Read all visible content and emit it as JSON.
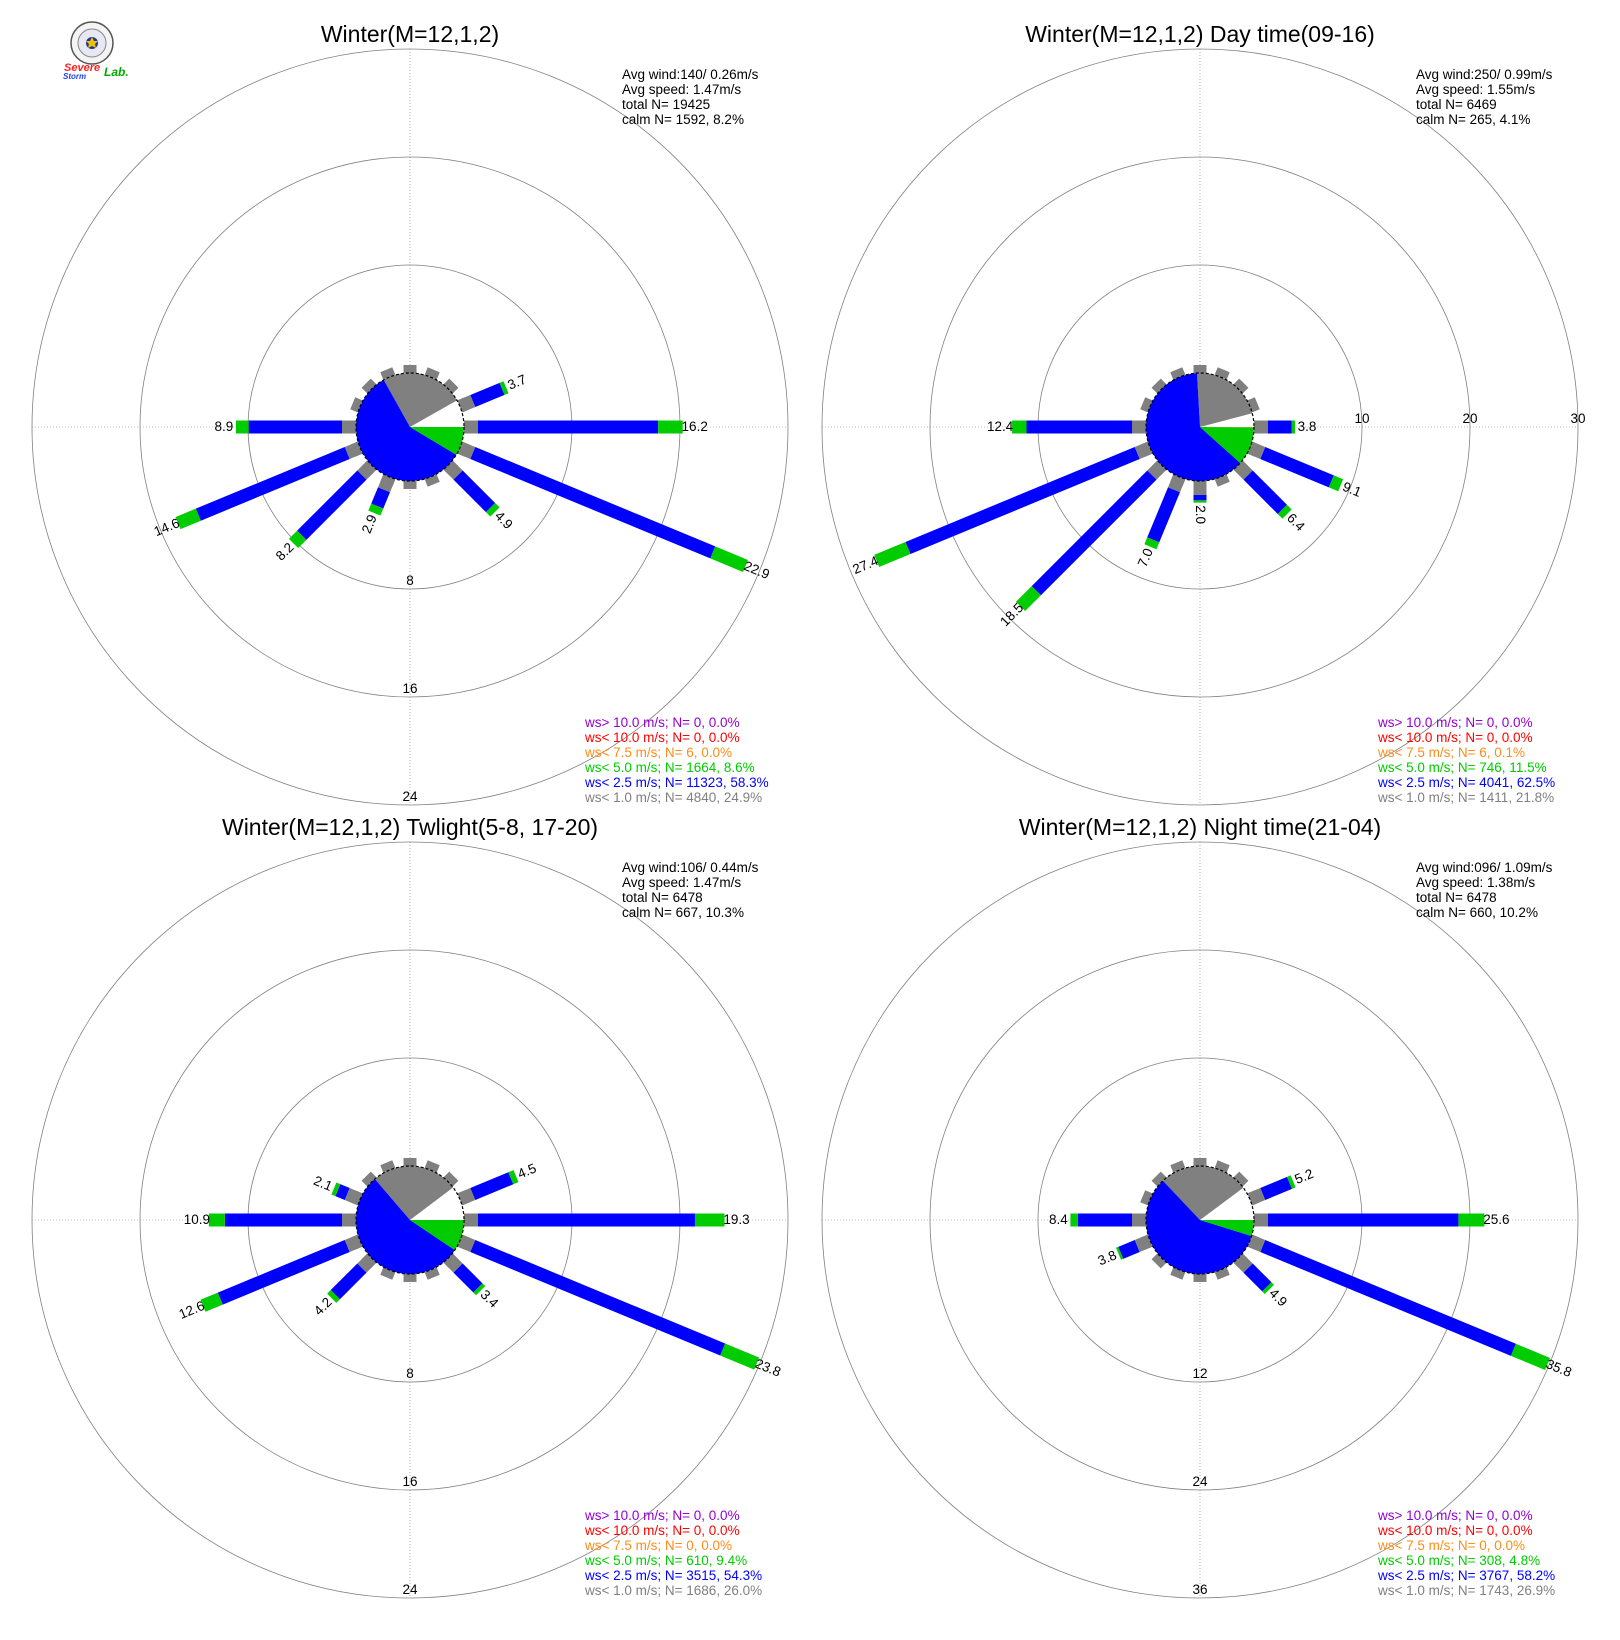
{
  "logo": {
    "name": "Severe Storm Lab",
    "text_severe": "Severe",
    "text_storm": "Storm",
    "text_lab": "Lab."
  },
  "colors": {
    "ws_gt_10": "#9400d3",
    "ws_lt_10": "#ff0000",
    "ws_lt_7_5": "#ff8c1a",
    "ws_lt_5": "#00cc00",
    "ws_lt_2_5": "#0000ff",
    "ws_lt_1": "#808080",
    "calm": "#ffffff",
    "grid": "#808080"
  },
  "chart_data": [
    {
      "type": "windrose",
      "title": "Winter(M=12,1,2)",
      "stats": [
        "Avg wind:140/ 0.26m/s",
        "Avg speed: 1.47m/s",
        "total N=      19425",
        "calm N=   1592,   8.2%"
      ],
      "ring_labels": [
        "8",
        "16",
        "24"
      ],
      "ring_values": [
        8,
        16,
        24
      ],
      "calm_percent": 8.2,
      "calm_class_pie": [
        8.2,
        24.9,
        58.3,
        8.6,
        0.0,
        0.0,
        0.0
      ],
      "sectors": [
        {
          "dir": 90,
          "pct": 16.2,
          "label": "16.2"
        },
        {
          "dir": 112.5,
          "pct": 22.9,
          "label": "22.9"
        },
        {
          "dir": 135,
          "pct": 4.9,
          "label": "4.9"
        },
        {
          "dir": 67.5,
          "pct": 3.7,
          "label": "3.7"
        },
        {
          "dir": 270,
          "pct": 8.9,
          "label": "8.9"
        },
        {
          "dir": 247.5,
          "pct": 14.6,
          "label": "14.6"
        },
        {
          "dir": 225,
          "pct": 8.2,
          "label": "8.2"
        },
        {
          "dir": 202.5,
          "pct": 2.9,
          "label": "2.9"
        }
      ],
      "legend": [
        {
          "text": "ws> 10.0 m/s; N=     0,  0.0%",
          "color_key": "ws_gt_10"
        },
        {
          "text": "ws< 10.0 m/s; N=     0,  0.0%",
          "color_key": "ws_lt_10"
        },
        {
          "text": "ws<  7.5 m/s; N=     6,  0.0%",
          "color_key": "ws_lt_7_5"
        },
        {
          "text": "ws<  5.0 m/s; N=  1664,  8.6%",
          "color_key": "ws_lt_5"
        },
        {
          "text": "ws<  2.5 m/s; N= 11323, 58.3%",
          "color_key": "ws_lt_2_5"
        },
        {
          "text": "ws<  1.0 m/s; N=  4840, 24.9%",
          "color_key": "ws_lt_1"
        }
      ]
    },
    {
      "type": "windrose",
      "title": "Winter(M=12,1,2) Day time(09-16)",
      "stats": [
        "Avg wind:250/ 0.99m/s",
        "Avg speed: 1.55m/s",
        "total N=       6469",
        "calm N=    265,   4.1%"
      ],
      "ring_labels": [
        "10",
        "20",
        "30"
      ],
      "ring_values": [
        10,
        20,
        30
      ],
      "ring_label_axis": "east",
      "calm_percent": 4.1,
      "calm_class_pie": [
        4.1,
        21.8,
        62.5,
        11.5,
        0.1,
        0.0,
        0.0
      ],
      "sectors": [
        {
          "dir": 90,
          "pct": 3.8,
          "label": "3.8"
        },
        {
          "dir": 112.5,
          "pct": 9.1,
          "label": "9.1"
        },
        {
          "dir": 135,
          "pct": 6.4,
          "label": "6.4"
        },
        {
          "dir": 270,
          "pct": 12.4,
          "label": "12.4"
        },
        {
          "dir": 247.5,
          "pct": 27.4,
          "label": "27.4"
        },
        {
          "dir": 225,
          "pct": 18.5,
          "label": "18.5"
        },
        {
          "dir": 202.5,
          "pct": 7.0,
          "label": "7.0"
        },
        {
          "dir": 180,
          "pct": 2.0,
          "label": "2.0"
        }
      ],
      "legend": [
        {
          "text": "ws> 10.0 m/s; N=     0,  0.0%",
          "color_key": "ws_gt_10"
        },
        {
          "text": "ws< 10.0 m/s; N=     0,  0.0%",
          "color_key": "ws_lt_10"
        },
        {
          "text": "ws<  7.5 m/s; N=     6,  0.1%",
          "color_key": "ws_lt_7_5"
        },
        {
          "text": "ws<  5.0 m/s; N=   746, 11.5%",
          "color_key": "ws_lt_5"
        },
        {
          "text": "ws<  2.5 m/s; N=  4041, 62.5%",
          "color_key": "ws_lt_2_5"
        },
        {
          "text": "ws<  1.0 m/s; N=  1411, 21.8%",
          "color_key": "ws_lt_1"
        }
      ]
    },
    {
      "type": "windrose",
      "title": "Winter(M=12,1,2) Twlight(5-8, 17-20)",
      "stats": [
        "Avg wind:106/ 0.44m/s",
        "Avg speed: 1.47m/s",
        "total N=       6478",
        "calm N=    667,  10.3%"
      ],
      "ring_labels": [
        "8",
        "16",
        "24"
      ],
      "ring_values": [
        8,
        16,
        24
      ],
      "calm_percent": 10.3,
      "calm_class_pie": [
        10.3,
        26.0,
        54.3,
        9.4,
        0.0,
        0.0,
        0.0
      ],
      "sectors": [
        {
          "dir": 90,
          "pct": 19.3,
          "label": "19.3"
        },
        {
          "dir": 112.5,
          "pct": 23.8,
          "label": "23.8"
        },
        {
          "dir": 135,
          "pct": 3.4,
          "label": "3.4"
        },
        {
          "dir": 67.5,
          "pct": 4.5,
          "label": "4.5"
        },
        {
          "dir": 270,
          "pct": 10.9,
          "label": "10.9"
        },
        {
          "dir": 247.5,
          "pct": 12.6,
          "label": "12.6"
        },
        {
          "dir": 225,
          "pct": 4.2,
          "label": "4.2"
        },
        {
          "dir": 292.5,
          "pct": 2.1,
          "label": "2.1"
        }
      ],
      "legend": [
        {
          "text": "ws> 10.0 m/s; N=     0,  0.0%",
          "color_key": "ws_gt_10"
        },
        {
          "text": "ws< 10.0 m/s; N=     0,  0.0%",
          "color_key": "ws_lt_10"
        },
        {
          "text": "ws<  7.5 m/s; N=     0,  0.0%",
          "color_key": "ws_lt_7_5"
        },
        {
          "text": "ws<  5.0 m/s; N=   610,  9.4%",
          "color_key": "ws_lt_5"
        },
        {
          "text": "ws<  2.5 m/s; N=  3515, 54.3%",
          "color_key": "ws_lt_2_5"
        },
        {
          "text": "ws<  1.0 m/s; N=  1686, 26.0%",
          "color_key": "ws_lt_1"
        }
      ]
    },
    {
      "type": "windrose",
      "title": "Winter(M=12,1,2) Night time(21-04)",
      "stats": [
        "Avg wind:096/ 1.09m/s",
        "Avg speed: 1.38m/s",
        "total N=       6478",
        "calm N=    660,  10.2%"
      ],
      "ring_labels": [
        "12",
        "24",
        "36"
      ],
      "ring_values": [
        12,
        24,
        36
      ],
      "calm_percent": 10.2,
      "calm_class_pie": [
        10.2,
        26.9,
        58.2,
        4.8,
        0.0,
        0.0,
        0.0
      ],
      "sectors": [
        {
          "dir": 90,
          "pct": 25.6,
          "label": "25.6"
        },
        {
          "dir": 112.5,
          "pct": 35.8,
          "label": "35.8"
        },
        {
          "dir": 135,
          "pct": 4.9,
          "label": "4.9"
        },
        {
          "dir": 67.5,
          "pct": 5.2,
          "label": "5.2"
        },
        {
          "dir": 270,
          "pct": 8.4,
          "label": "8.4"
        },
        {
          "dir": 247.5,
          "pct": 3.8,
          "label": "3.8"
        }
      ],
      "legend": [
        {
          "text": "ws> 10.0 m/s; N=     0,  0.0%",
          "color_key": "ws_gt_10"
        },
        {
          "text": "ws< 10.0 m/s; N=     0,  0.0%",
          "color_key": "ws_lt_10"
        },
        {
          "text": "ws<  7.5 m/s; N=     0,  0.0%",
          "color_key": "ws_lt_7_5"
        },
        {
          "text": "ws<  5.0 m/s; N=   308,  4.8%",
          "color_key": "ws_lt_5"
        },
        {
          "text": "ws<  2.5 m/s; N=  3767, 58.2%",
          "color_key": "ws_lt_2_5"
        },
        {
          "text": "ws<  1.0 m/s; N=  1743, 26.9%",
          "color_key": "ws_lt_1"
        }
      ]
    }
  ]
}
